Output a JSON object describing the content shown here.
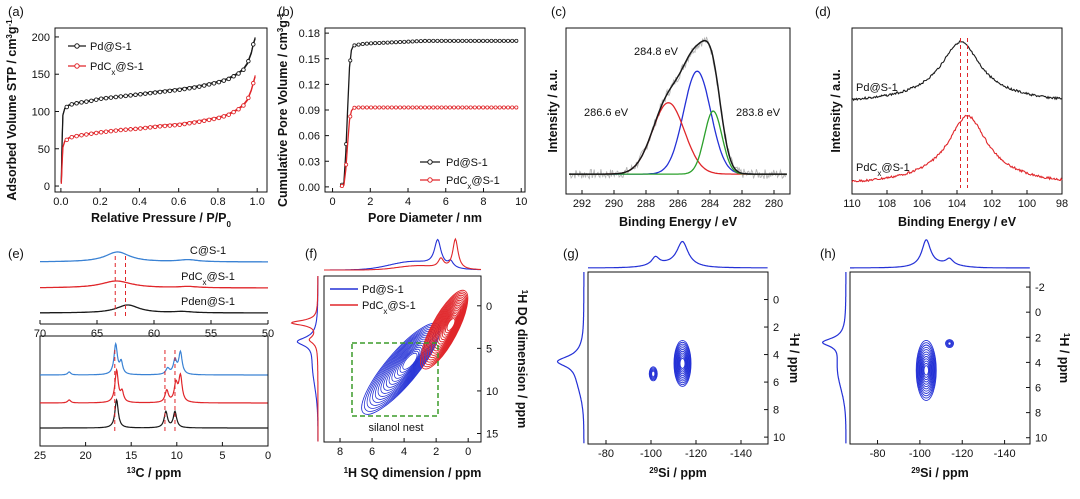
{
  "colors": {
    "black": "#1a1a1a",
    "red": "#e0262a",
    "blue": "#2431d6",
    "green": "#2ca02c",
    "gray": "#b5b5b5",
    "lightblue": "#3a82d4",
    "dash_green": "#3b9b2a"
  },
  "chart_data": [
    {
      "panel": "(a)",
      "type": "line",
      "xlabel": "Relative Pressure / P/P",
      "xlabel_sub": "0",
      "ylabel": "Adsorbed Volume STP / cm",
      "ylabel_sup1": "3",
      "ylabel_mid": "g",
      "ylabel_sup2": "-1",
      "xlim": [
        -0.03,
        1.05
      ],
      "ylim": [
        -8,
        212
      ],
      "xticks": [
        "0.0",
        "0.2",
        "0.4",
        "0.6",
        "0.8",
        "1.0"
      ],
      "xtick_values": [
        0,
        0.2,
        0.4,
        0.6,
        0.8,
        1.0
      ],
      "yticks": [
        "0",
        "50",
        "100",
        "150",
        "200"
      ],
      "ytick_values": [
        0,
        50,
        100,
        150,
        200
      ],
      "series": [
        {
          "name": "Pd@S-1",
          "name_main": "Pd@S-1",
          "name_sub": "",
          "name_rest": "",
          "color": "black",
          "x": [
            0.002,
            0.006,
            0.01,
            0.02,
            0.04,
            0.06,
            0.1,
            0.15,
            0.2,
            0.3,
            0.4,
            0.5,
            0.6,
            0.7,
            0.8,
            0.85,
            0.9,
            0.93,
            0.95,
            0.97,
            0.98,
            0.99
          ],
          "y": [
            5,
            60,
            95,
            104,
            108,
            110,
            112,
            114,
            117,
            120,
            123,
            126,
            129,
            133,
            139,
            143,
            150,
            156,
            164,
            178,
            190,
            198
          ]
        },
        {
          "name": "PdCx@S-1",
          "name_main": "PdC",
          "name_sub": "x",
          "name_rest": "@S-1",
          "color": "red",
          "x": [
            0.002,
            0.006,
            0.01,
            0.02,
            0.04,
            0.06,
            0.1,
            0.15,
            0.2,
            0.3,
            0.4,
            0.5,
            0.6,
            0.7,
            0.8,
            0.85,
            0.9,
            0.93,
            0.95,
            0.97,
            0.98,
            0.99
          ],
          "y": [
            3,
            30,
            52,
            60,
            64,
            66,
            68,
            70,
            72,
            75,
            77,
            80,
            82,
            86,
            91,
            95,
            102,
            108,
            115,
            128,
            138,
            147
          ]
        }
      ]
    },
    {
      "panel": "(b)",
      "type": "line",
      "xlabel": "Pore Diameter / nm",
      "ylabel": "Cumulative Pore Volume / cm",
      "ylabel_sup1": "3",
      "ylabel_mid": "g",
      "ylabel_sup2": "-1",
      "xlim": [
        -0.4,
        10.2
      ],
      "ylim": [
        -0.006,
        0.186
      ],
      "xticks": [
        "0",
        "2",
        "4",
        "6",
        "8",
        "10"
      ],
      "xtick_values": [
        0,
        2,
        4,
        6,
        8,
        10
      ],
      "yticks": [
        "0.00",
        "0.03",
        "0.06",
        "0.09",
        "0.12",
        "0.15",
        "0.18"
      ],
      "ytick_values": [
        0,
        0.03,
        0.06,
        0.09,
        0.12,
        0.15,
        0.18
      ],
      "series": [
        {
          "name": "Pd@S-1",
          "name_main": "Pd@S-1",
          "name_sub": "",
          "name_rest": "",
          "color": "black",
          "x": [
            0.4,
            0.6,
            0.7,
            0.8,
            0.9,
            1.0,
            1.1,
            1.2,
            1.5,
            2,
            3,
            4,
            5,
            6,
            7,
            8,
            9,
            9.8
          ],
          "y": [
            0.0,
            0.005,
            0.04,
            0.09,
            0.14,
            0.16,
            0.165,
            0.166,
            0.167,
            0.168,
            0.169,
            0.17,
            0.171,
            0.171,
            0.171,
            0.171,
            0.171,
            0.171
          ]
        },
        {
          "name": "PdCx@S-1",
          "name_main": "PdC",
          "name_sub": "x",
          "name_rest": "@S-1",
          "color": "red",
          "x": [
            0.4,
            0.6,
            0.7,
            0.8,
            0.9,
            1.0,
            1.1,
            1.2,
            1.5,
            2,
            3,
            4,
            5,
            6,
            7,
            8,
            9,
            9.8
          ],
          "y": [
            0.0,
            0.002,
            0.02,
            0.05,
            0.078,
            0.089,
            0.092,
            0.093,
            0.093,
            0.093,
            0.093,
            0.093,
            0.093,
            0.093,
            0.093,
            0.093,
            0.093,
            0.093
          ]
        }
      ]
    },
    {
      "panel": "(c)",
      "type": "line",
      "xlabel": "Binding Energy / eV",
      "ylabel": "Intensity / a.u.",
      "xlim": [
        293,
        279
      ],
      "ylim": [
        0,
        1
      ],
      "xticks": [
        "292",
        "290",
        "288",
        "286",
        "284",
        "282",
        "280"
      ],
      "xtick_values": [
        292,
        290,
        288,
        286,
        284,
        282,
        280
      ],
      "peaks": [
        {
          "label": "284.8 eV",
          "center": 284.8,
          "color": "blue"
        },
        {
          "label": "286.6 eV",
          "center": 286.6,
          "color": "red"
        },
        {
          "label": "283.8 eV",
          "center": 283.8,
          "color": "green"
        }
      ],
      "series": [
        {
          "name": "raw",
          "color": "gray"
        },
        {
          "name": "fit envelope",
          "color": "black"
        },
        {
          "name": "284.8 eV component",
          "center": 284.8,
          "amplitude": 0.62,
          "sigma": 0.85,
          "color": "blue"
        },
        {
          "name": "286.6 eV component",
          "center": 286.6,
          "amplitude": 0.43,
          "sigma": 1.0,
          "color": "red"
        },
        {
          "name": "283.8 eV component",
          "center": 283.8,
          "amplitude": 0.38,
          "sigma": 0.55,
          "color": "green"
        }
      ]
    },
    {
      "panel": "(d)",
      "type": "line",
      "xlabel": "Binding Energy / eV",
      "ylabel": "Intensity / a.u.",
      "xlim": [
        110,
        98
      ],
      "ylim": [
        0,
        1
      ],
      "xticks": [
        "110",
        "108",
        "106",
        "104",
        "102",
        "100",
        "98"
      ],
      "xtick_values": [
        110,
        108,
        106,
        104,
        102,
        100,
        98
      ],
      "dashed_lines": [
        103.8,
        103.4
      ],
      "series": [
        {
          "name": "Pd@S-1",
          "name_main": "Pd@S-1",
          "name_sub": "",
          "name_rest": "",
          "center": 103.8,
          "color": "black"
        },
        {
          "name": "PdCx@S-1",
          "name_main": "PdC",
          "name_sub": "x",
          "name_rest": "@S-1",
          "center": 103.4,
          "color": "red"
        }
      ]
    },
    {
      "panel": "(e)",
      "type": "line",
      "xlabel_main": "13",
      "xlabel": "C / ppm",
      "xlim_bottom": [
        25,
        0
      ],
      "xlim_top": [
        70,
        50
      ],
      "xticks_bottom": [
        "25",
        "20",
        "15",
        "10",
        "5",
        "0"
      ],
      "xtick_values_bottom": [
        25,
        20,
        15,
        10,
        5,
        0
      ],
      "xticks_top": [
        "70",
        "65",
        "60",
        "55",
        "50"
      ],
      "xtick_values_top": [
        70,
        65,
        60,
        55,
        50
      ],
      "dashed_top": [
        63.4,
        62.5
      ],
      "dashed_bottom": [
        16.8,
        11.3,
        10.2
      ],
      "series": [
        {
          "name": "C@S-1",
          "name_main": "C@S-1",
          "name_sub": "",
          "name_rest": "",
          "color": "lightblue"
        },
        {
          "name": "PdCx@S-1",
          "name_main": "PdC",
          "name_sub": "x",
          "name_rest": "@S-1",
          "color": "red"
        },
        {
          "name": "Pden@S-1",
          "name_main": "Pden@S-1",
          "name_sub": "",
          "name_rest": "",
          "color": "black"
        }
      ]
    },
    {
      "panel": "(f)",
      "type": "heatmap",
      "xlabel_sup": "1",
      "xlabel": "H SQ dimension / ppm",
      "ylabel_sup": "1",
      "ylabel": "H DQ dimension / ppm",
      "xlim": [
        9,
        -0.8
      ],
      "ylim": [
        -3.5,
        16
      ],
      "xticks": [
        "8",
        "6",
        "4",
        "2",
        "0"
      ],
      "xtick_values": [
        8,
        6,
        4,
        2,
        0
      ],
      "yticks": [
        "0",
        "5",
        "10",
        "15"
      ],
      "ytick_values": [
        0,
        5,
        10,
        15
      ],
      "annotation": "silanol nest",
      "series": [
        {
          "name": "Pd@S-1",
          "name_main": "Pd@S-1",
          "name_sub": "",
          "name_rest": "",
          "color": "blue"
        },
        {
          "name": "PdCx@S-1",
          "name_main": "PdC",
          "name_sub": "x",
          "name_rest": "@S-1",
          "color": "red"
        }
      ]
    },
    {
      "panel": "(g)",
      "type": "heatmap",
      "xlabel_sup": "29",
      "xlabel": "Si / ppm",
      "ylabel_sup": "1",
      "ylabel": "H / ppm",
      "xlim": [
        -72,
        -152
      ],
      "ylim": [
        -2,
        10.5
      ],
      "xticks": [
        "-80",
        "-100",
        "-120",
        "-140"
      ],
      "xtick_values": [
        -80,
        -100,
        -120,
        -140
      ],
      "yticks": [
        "0",
        "2",
        "4",
        "6",
        "8",
        "10"
      ],
      "ytick_values": [
        0,
        2,
        4,
        6,
        8,
        10
      ],
      "peaks": [
        {
          "x": -114,
          "y": 4.5
        },
        {
          "x": -101,
          "y": 5.4
        }
      ]
    },
    {
      "panel": "(h)",
      "type": "heatmap",
      "xlabel_sup": "29",
      "xlabel": "Si / ppm",
      "ylabel_sup": "1",
      "ylabel": "H / ppm",
      "xlim": [
        -67,
        -152
      ],
      "ylim": [
        -3.2,
        10.5
      ],
      "xticks": [
        "-80",
        "-100",
        "-120",
        "-140"
      ],
      "xtick_values": [
        -80,
        -100,
        -120,
        -140
      ],
      "yticks": [
        "-2",
        "0",
        "2",
        "4",
        "6",
        "8",
        "10"
      ],
      "ytick_values": [
        -2,
        0,
        2,
        4,
        6,
        8,
        10
      ],
      "peaks": [
        {
          "x": -103,
          "y": 4
        },
        {
          "x": -114,
          "y": 2.5
        }
      ]
    }
  ]
}
